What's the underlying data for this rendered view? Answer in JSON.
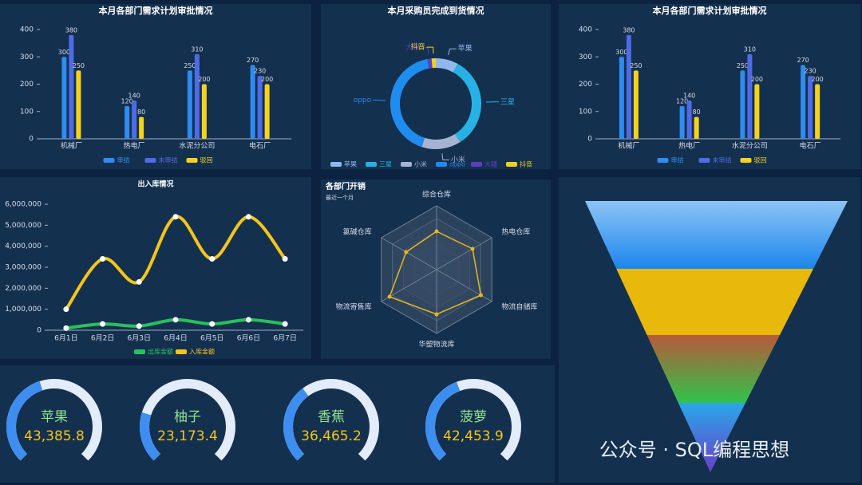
{
  "chart_data": [
    {
      "type": "bar",
      "title": "本月各部门需求计划审批情况",
      "categories": [
        "机械厂",
        "热电厂",
        "水泥分公司",
        "电石厂"
      ],
      "series": [
        {
          "name": "审结",
          "color": "#2f8cf0",
          "values": [
            300,
            120,
            250,
            270
          ]
        },
        {
          "name": "未审结",
          "color": "#4f6be6",
          "values": [
            380,
            140,
            310,
            230
          ]
        },
        {
          "name": "驳回",
          "color": "#f5d31a",
          "values": [
            250,
            80,
            200,
            200
          ]
        }
      ],
      "ylim": [
        0,
        400
      ],
      "yticks": [
        0,
        100,
        200,
        300,
        400
      ]
    },
    {
      "type": "pie",
      "title": "本月采购员完成到货情况",
      "categories": [
        "苹果",
        "三星",
        "小米",
        "oppo",
        "大疆",
        "抖音"
      ],
      "values": [
        8,
        33,
        14,
        42,
        1.5,
        1.5
      ],
      "colors": [
        "#8fb9ee",
        "#27b2e6",
        "#a7b3d3",
        "#1f8cf0",
        "#5a3fc0",
        "#f0d21c"
      ]
    },
    {
      "type": "bar",
      "title": "本月各部门需求计划审批情况",
      "categories": [
        "机械厂",
        "热电厂",
        "水泥分公司",
        "电石厂"
      ],
      "series": [
        {
          "name": "审结",
          "color": "#2f8cf0",
          "values": [
            300,
            120,
            250,
            270
          ]
        },
        {
          "name": "未审结",
          "color": "#4f6be6",
          "values": [
            380,
            140,
            310,
            230
          ]
        },
        {
          "name": "驳回",
          "color": "#f5d31a",
          "values": [
            250,
            80,
            200,
            200
          ]
        }
      ],
      "ylim": [
        0,
        400
      ],
      "yticks": [
        0,
        100,
        200,
        300,
        400
      ]
    },
    {
      "type": "line",
      "title": "出入库情况",
      "categories": [
        "6月1日",
        "6月2日",
        "6月3日",
        "6月4日",
        "6月5日",
        "6月6日",
        "6月7日"
      ],
      "series": [
        {
          "name": "出库金额",
          "color": "#27c25a",
          "values": [
            100000,
            300000,
            200000,
            500000,
            300000,
            500000,
            300000
          ]
        },
        {
          "name": "入库金额",
          "color": "#f5c518",
          "values": [
            1000000,
            3400000,
            2300000,
            5400000,
            3400000,
            5400000,
            3400000
          ]
        }
      ],
      "ylim": [
        0,
        6000000
      ],
      "yticks": [
        0,
        {
          "value": 1000000,
          "label": "1,000,000"
        },
        {
          "value": 2000000,
          "label": "2,000,000"
        },
        {
          "value": 3000000,
          "label": "3,000,000"
        },
        {
          "value": 4000000,
          "label": "4,000,000"
        },
        {
          "value": 5000000,
          "label": "5,000,000"
        },
        {
          "value": 6000000,
          "label": "6,000,000"
        }
      ]
    },
    {
      "type": "radar",
      "title": "各部门开销",
      "subtitle": "最近一个月",
      "categories": [
        "综合仓库",
        "热电仓库",
        "物流自储库",
        "华塑物流库",
        "物流寄售库",
        "氯碱仓库"
      ],
      "values": [
        60,
        65,
        80,
        70,
        85,
        55
      ],
      "color": "#e8b81a",
      "rlim": [
        0,
        100
      ]
    },
    {
      "type": "gauge",
      "categories": [
        "苹果",
        "柚子",
        "香蕉",
        "菠萝"
      ],
      "values": [
        43385.8,
        23173.4,
        36465.2,
        42453.9
      ],
      "value_labels": [
        "43,385.8",
        "23,173.4",
        "36,465.2",
        "42,453.9"
      ],
      "range": [
        0,
        100000
      ],
      "color": "#3d8ef0"
    }
  ],
  "watermark": "公众号 · SQL编程思想"
}
